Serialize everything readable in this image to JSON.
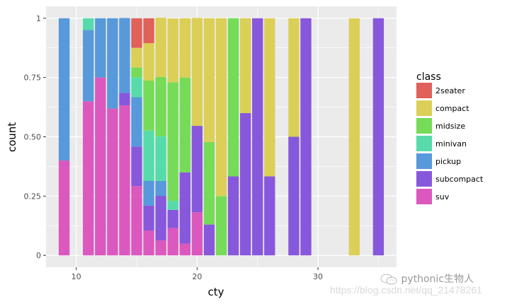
{
  "chart_data": {
    "type": "bar",
    "stacked": "fill",
    "title": "",
    "xlabel": "cty",
    "ylabel": "count",
    "xlim": [
      7.5,
      36.5
    ],
    "ylim": [
      -0.05,
      1.05
    ],
    "x_ticks": [
      10,
      20,
      30
    ],
    "x_tick_labels": [
      "10",
      "20",
      "30"
    ],
    "y_ticks": [
      0,
      0.25,
      0.5,
      0.75,
      1
    ],
    "y_tick_labels": [
      "0",
      "0.25",
      "0.50",
      "0.75",
      "1"
    ],
    "grid": true,
    "legend": {
      "title": "class",
      "position": "right",
      "entries": [
        "2seater",
        "compact",
        "midsize",
        "minivan",
        "pickup",
        "subcompact",
        "suv"
      ]
    },
    "colors": {
      "2seater": "#E0605A",
      "compact": "#DBCF58",
      "midsize": "#76DB58",
      "minivan": "#57DBAA",
      "pickup": "#5799DB",
      "subcompact": "#8758DB",
      "suv": "#DB58BE"
    },
    "stack_order_bottom_to_top": [
      "suv",
      "subcompact",
      "pickup",
      "minivan",
      "midsize",
      "compact",
      "2seater"
    ],
    "x": [
      9,
      11,
      12,
      13,
      14,
      15,
      16,
      17,
      18,
      19,
      20,
      21,
      22,
      23,
      24,
      25,
      26,
      28,
      29,
      33,
      35
    ],
    "series": [
      {
        "name": "2seater",
        "values": [
          0,
          0,
          0,
          0,
          0,
          0.125,
          0.105,
          0,
          0,
          0,
          0,
          0,
          0,
          0,
          0,
          0,
          0,
          0,
          0,
          0,
          0
        ]
      },
      {
        "name": "compact",
        "values": [
          0,
          0,
          0,
          0,
          0,
          0.083,
          0.158,
          0.25,
          0.269,
          0.25,
          0.455,
          0.522,
          0.75,
          0,
          0.4,
          0,
          0.667,
          0.5,
          0,
          1,
          0
        ]
      },
      {
        "name": "midsize",
        "values": [
          0,
          0,
          0,
          0,
          0,
          0.042,
          0.211,
          0.25,
          0.5,
          0.4,
          0,
          0.348,
          0.25,
          0.667,
          0,
          0,
          0,
          0,
          0,
          0,
          0
        ]
      },
      {
        "name": "minivan",
        "values": [
          0,
          0.05,
          0,
          0,
          0,
          0.083,
          0.211,
          0.188,
          0.038,
          0,
          0,
          0,
          0,
          0,
          0,
          0,
          0,
          0,
          0,
          0,
          0
        ]
      },
      {
        "name": "pickup",
        "values": [
          0.6,
          0.3,
          0.25,
          0.381,
          0.316,
          0.208,
          0.105,
          0.063,
          0,
          0,
          0,
          0,
          0,
          0,
          0,
          0,
          0,
          0,
          0,
          0,
          0
        ]
      },
      {
        "name": "subcompact",
        "values": [
          0,
          0,
          0,
          0,
          0.053,
          0.167,
          0.105,
          0.188,
          0.077,
          0.3,
          0.364,
          0.13,
          0,
          0.333,
          0.6,
          1,
          0.333,
          0.5,
          1,
          0,
          1
        ]
      },
      {
        "name": "suv",
        "values": [
          0.4,
          0.65,
          0.75,
          0.619,
          0.632,
          0.292,
          0.105,
          0.063,
          0.115,
          0.05,
          0.182,
          0,
          0,
          0,
          0,
          0,
          0,
          0,
          0,
          0,
          0
        ]
      }
    ]
  },
  "watermark": {
    "account": "pythonic生物人",
    "url": "https://blog.csdn.net/qq_21478261"
  }
}
